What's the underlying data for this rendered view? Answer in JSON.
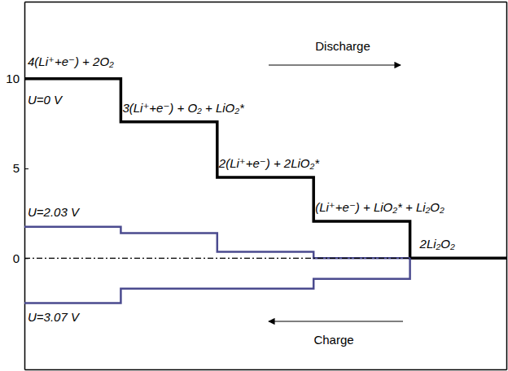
{
  "chart_data": {
    "type": "step",
    "xlim": [
      0,
      5
    ],
    "ylim": [
      -6.2,
      14.3
    ],
    "yticks": [
      0,
      5,
      10
    ],
    "tick_labels": "y",
    "grid": false,
    "series": [
      {
        "name": "U=0 V",
        "color": "#000000",
        "x": [
          0,
          1,
          2,
          3,
          4,
          5
        ],
        "values": [
          10,
          7.6,
          4.5,
          2.05,
          0,
          0
        ]
      },
      {
        "name": "U=2.03 V",
        "color": "#4b4b8f",
        "x": [
          0,
          1,
          2,
          3,
          4
        ],
        "values": [
          1.75,
          1.4,
          0.35,
          0,
          0
        ]
      },
      {
        "name": "U=3.07 V",
        "color": "#4b4b8f",
        "x": [
          0,
          1,
          2,
          3,
          4
        ],
        "values": [
          -2.5,
          -1.7,
          -1.7,
          -1.15,
          0
        ]
      }
    ],
    "reference_line": {
      "y": 0,
      "x": [
        0,
        4
      ],
      "color": "#000000",
      "line_style": "dashdot"
    },
    "annotations": [
      {
        "text": "4(Li⁺+e⁻) + 2O₂",
        "x": 0,
        "y": 10
      },
      {
        "text": "3(Li⁺+e⁻) + O₂ + LiO₂*",
        "x": 1,
        "y": 7.6
      },
      {
        "text": "2(Li⁺+e⁻) + 2LiO₂*",
        "x": 2,
        "y": 4.5
      },
      {
        "text": "(Li⁺+e⁻) + LiO₂* + Li₂O₂",
        "x": 3,
        "y": 2.05
      },
      {
        "text": "2Li₂O₂",
        "x": 4,
        "y": 0
      }
    ],
    "arrows": [
      {
        "text": "Discharge",
        "direction": "right"
      },
      {
        "text": "Charge",
        "direction": "left"
      }
    ]
  }
}
